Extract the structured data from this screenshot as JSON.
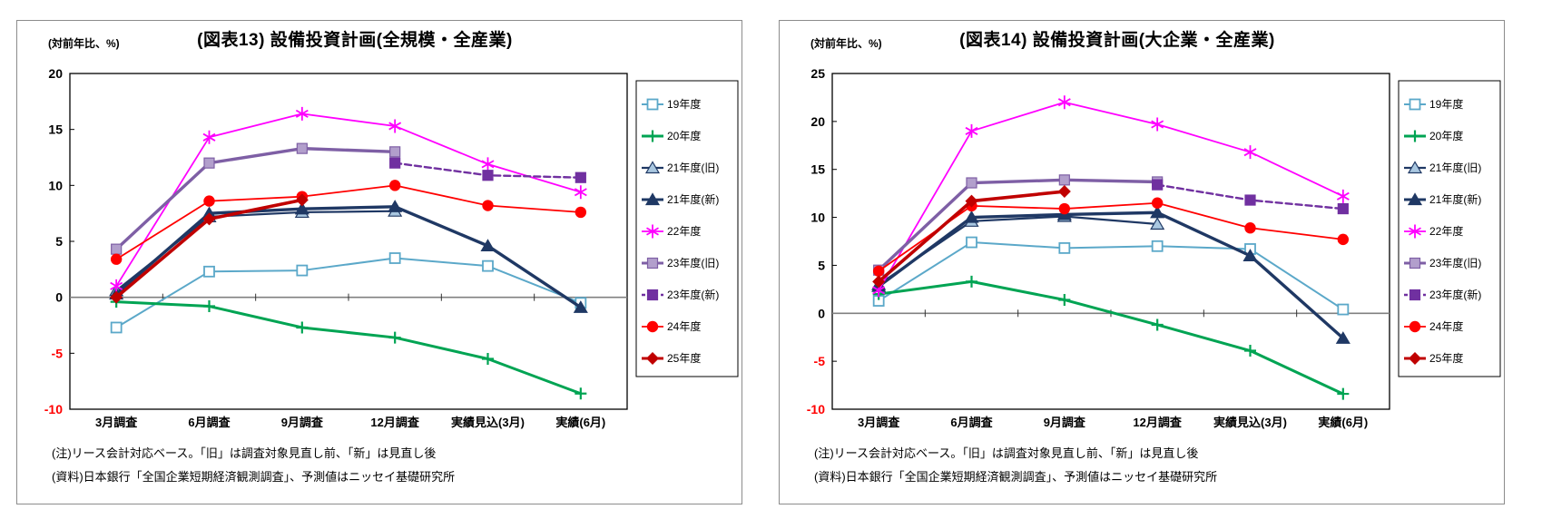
{
  "page": {
    "background": "#ffffff",
    "colors": {
      "panel_border": "#8c8c8c",
      "plot_border": "#000000",
      "zero_line": "#808080",
      "negative_tick_label": "#ff0000"
    }
  },
  "chart_data": [
    {
      "type": "line",
      "title": "(図表13) 設備投資計画(全規模・全産業)",
      "ylabel": "(対前年比、%)",
      "xlabel": "",
      "ylim": [
        -10,
        20
      ],
      "ytick_step": 5,
      "grid": "zero-line-only",
      "legend_position": "right",
      "categories": [
        "3月調査",
        "6月調査",
        "9月調査",
        "12月調査",
        "実績見込(3月)",
        "実績(6月)"
      ],
      "series": [
        {
          "name": "19年度",
          "color": "#5ba8c9",
          "line_width": 2,
          "dash": null,
          "marker": "open-square",
          "marker_fill": "#ffffff",
          "values": [
            -2.7,
            2.3,
            2.4,
            3.5,
            2.8,
            -0.5
          ]
        },
        {
          "name": "20年度",
          "color": "#00a453",
          "line_width": 3,
          "dash": null,
          "marker": "plus",
          "marker_fill": "#00a453",
          "values": [
            -0.4,
            -0.8,
            -2.7,
            -3.6,
            -5.5,
            -8.6
          ]
        },
        {
          "name": "21年度(旧)",
          "color": "#1f3864",
          "line_width": 2.2,
          "dash": null,
          "marker": "triangle",
          "marker_fill": "#a9c7e0",
          "values": [
            0.6,
            7.2,
            7.6,
            7.7,
            null,
            null
          ]
        },
        {
          "name": "21年度(新)",
          "color": "#1f3864",
          "line_width": 3.4,
          "dash": null,
          "marker": "triangle",
          "marker_fill": "#1f3864",
          "values": [
            0.3,
            7.5,
            7.9,
            8.1,
            4.6,
            -0.9
          ]
        },
        {
          "name": "22年度",
          "color": "#ff00ff",
          "line_width": 1.8,
          "dash": null,
          "marker": "asterisk",
          "marker_fill": "#ff00ff",
          "values": [
            1.0,
            14.3,
            16.4,
            15.3,
            11.9,
            9.4
          ]
        },
        {
          "name": "23年度(旧)",
          "color": "#7e5fa5",
          "line_width": 3.4,
          "dash": null,
          "marker": "square",
          "marker_fill": "#b29fcc",
          "values": [
            4.3,
            12.0,
            13.3,
            13.0,
            null,
            null
          ]
        },
        {
          "name": "23年度(新)",
          "color": "#7030a0",
          "line_width": 2.4,
          "dash": "7,4",
          "marker": "square",
          "marker_fill": "#7030a0",
          "values": [
            null,
            null,
            null,
            12.0,
            10.9,
            10.7
          ]
        },
        {
          "name": "24年度",
          "color": "#ff0000",
          "line_width": 1.8,
          "dash": null,
          "marker": "circle",
          "marker_fill": "#ff0000",
          "values": [
            3.4,
            8.6,
            9.0,
            10.0,
            8.2,
            7.6
          ]
        },
        {
          "name": "25年度",
          "color": "#c00000",
          "line_width": 3.6,
          "dash": null,
          "marker": "diamond",
          "marker_fill": "#c00000",
          "values": [
            0.0,
            7.0,
            8.7,
            null,
            null,
            null
          ]
        }
      ],
      "notes": [
        "(注)リース会計対応ベース。「旧」は調査対象見直し前、「新」は見直し後",
        "(資料)日本銀行「全国企業短期経済観測調査」、予測値はニッセイ基礎研究所"
      ]
    },
    {
      "type": "line",
      "title": "(図表14) 設備投資計画(大企業・全産業)",
      "ylabel": "(対前年比、%)",
      "xlabel": "",
      "ylim": [
        -10,
        25
      ],
      "ytick_step": 5,
      "grid": "zero-line-only",
      "legend_position": "right",
      "categories": [
        "3月調査",
        "6月調査",
        "9月調査",
        "12月調査",
        "実績見込(3月)",
        "実績(6月)"
      ],
      "series": [
        {
          "name": "19年度",
          "color": "#5ba8c9",
          "line_width": 2,
          "dash": null,
          "marker": "open-square",
          "marker_fill": "#ffffff",
          "values": [
            1.3,
            7.4,
            6.8,
            7.0,
            6.7,
            0.4
          ]
        },
        {
          "name": "20年度",
          "color": "#00a453",
          "line_width": 3,
          "dash": null,
          "marker": "plus",
          "marker_fill": "#00a453",
          "values": [
            2.0,
            3.3,
            1.4,
            -1.2,
            -3.9,
            -8.4
          ]
        },
        {
          "name": "21年度(旧)",
          "color": "#1f3864",
          "line_width": 2.2,
          "dash": null,
          "marker": "triangle",
          "marker_fill": "#a9c7e0",
          "values": [
            3.0,
            9.6,
            10.1,
            9.3,
            null,
            null
          ]
        },
        {
          "name": "21年度(新)",
          "color": "#1f3864",
          "line_width": 3.4,
          "dash": null,
          "marker": "triangle",
          "marker_fill": "#1f3864",
          "values": [
            2.8,
            10.0,
            10.3,
            10.5,
            6.0,
            -2.6
          ]
        },
        {
          "name": "22年度",
          "color": "#ff00ff",
          "line_width": 1.8,
          "dash": null,
          "marker": "asterisk",
          "marker_fill": "#ff00ff",
          "values": [
            2.4,
            19.0,
            22.0,
            19.7,
            16.8,
            12.2
          ]
        },
        {
          "name": "23年度(旧)",
          "color": "#7e5fa5",
          "line_width": 3.4,
          "dash": null,
          "marker": "square",
          "marker_fill": "#b29fcc",
          "values": [
            4.5,
            13.6,
            13.9,
            13.7,
            null,
            null
          ]
        },
        {
          "name": "23年度(新)",
          "color": "#7030a0",
          "line_width": 2.4,
          "dash": "7,4",
          "marker": "square",
          "marker_fill": "#7030a0",
          "values": [
            null,
            null,
            null,
            13.4,
            11.8,
            10.9
          ]
        },
        {
          "name": "24年度",
          "color": "#ff0000",
          "line_width": 1.8,
          "dash": null,
          "marker": "circle",
          "marker_fill": "#ff0000",
          "values": [
            4.4,
            11.2,
            10.9,
            11.5,
            8.9,
            7.7
          ]
        },
        {
          "name": "25年度",
          "color": "#c00000",
          "line_width": 3.6,
          "dash": null,
          "marker": "diamond",
          "marker_fill": "#c00000",
          "values": [
            3.3,
            11.7,
            12.7,
            null,
            null,
            null
          ]
        }
      ],
      "notes": [
        "(注)リース会計対応ベース。「旧」は調査対象見直し前、「新」は見直し後",
        "(資料)日本銀行「全国企業短期経済観測調査」、予測値はニッセイ基礎研究所"
      ]
    }
  ]
}
